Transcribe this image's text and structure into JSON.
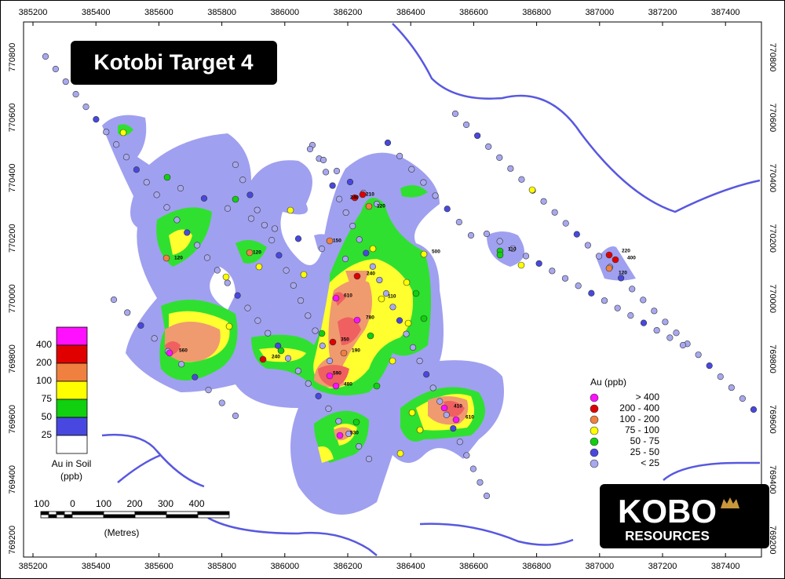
{
  "map": {
    "title": "Kotobi Target 4",
    "x_labels": [
      "385200",
      "385400",
      "385600",
      "385800",
      "386000",
      "386200",
      "386400",
      "386600",
      "386800",
      "387000",
      "387200",
      "387400"
    ],
    "y_labels": [
      "770800",
      "770600",
      "770400",
      "770200",
      "770000",
      "769800",
      "769600",
      "769400",
      "769200"
    ],
    "color_scale": {
      "title": "Au in Soil",
      "unit": "(ppb)",
      "labels": [
        "400",
        "200",
        "100",
        "75",
        "50",
        "25"
      ]
    },
    "legend": {
      "title": "Au (ppb)",
      "entries": [
        "> 400",
        "200  -  400",
        "100  -  200",
        "75  -  100",
        "50  -  75",
        "25  -  50",
        "< 25"
      ]
    },
    "scale_bar": {
      "labels": [
        "100",
        "0",
        "100",
        "200",
        "300",
        "400"
      ],
      "unit": "(Metres)"
    },
    "logo": {
      "name": "KOBO",
      "subtitle": "RESOURCES"
    },
    "sample_labels": [
      "120",
      "150",
      "120",
      "210",
      "240",
      "120",
      "240",
      "610",
      "110",
      "780",
      "350",
      "190",
      "560",
      "240",
      "590",
      "480",
      "530",
      "410",
      "610",
      "500",
      "110",
      "220",
      "400",
      "120"
    ]
  }
}
